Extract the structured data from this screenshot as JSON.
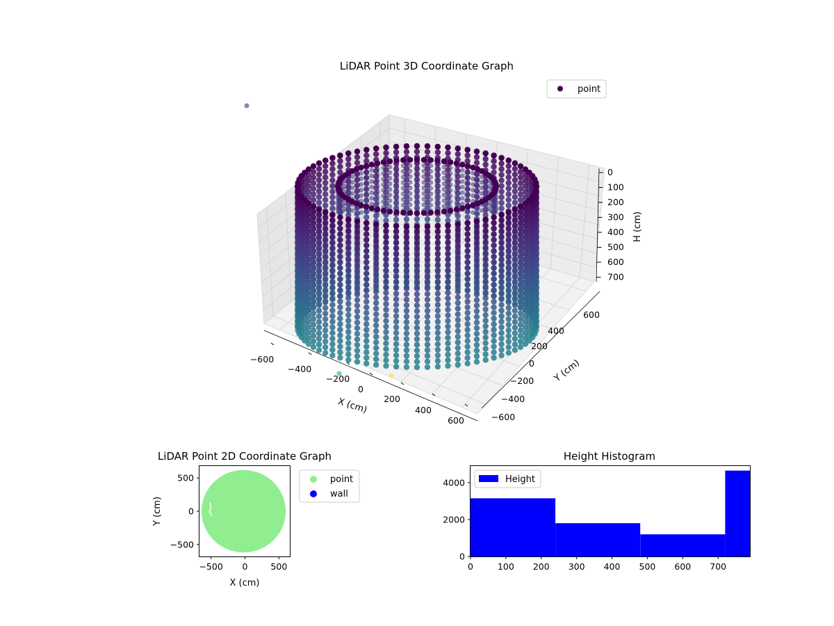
{
  "chart_data": [
    {
      "type": "scatter",
      "projection": "3d",
      "title": "LiDAR Point 3D Coordinate Graph",
      "xlabel": "X (cm)",
      "ylabel": "Y (cm)",
      "zlabel": "H (cm)",
      "xticks": [
        "−600",
        "−400",
        "−200",
        "0",
        "200",
        "400",
        "600"
      ],
      "yticks": [
        "−600",
        "−400",
        "−200",
        "0",
        "200",
        "400",
        "600"
      ],
      "zticks": [
        "0",
        "100",
        "200",
        "300",
        "400",
        "500",
        "600",
        "700"
      ],
      "xlim": [
        -650,
        650
      ],
      "ylim": [
        -650,
        650
      ],
      "zlim": [
        0,
        800
      ],
      "zaxis_inverted": true,
      "colormap": "viridis",
      "legend": {
        "position": "top-right",
        "entries": [
          {
            "label": "point",
            "color": "#440154"
          }
        ]
      },
      "series": [
        {
          "name": "point",
          "shape": "cylindrical shell of points",
          "outer_radius": 650,
          "inner_radius": 430,
          "height_range": [
            0,
            750
          ]
        }
      ],
      "outliers": [
        {
          "x": -350,
          "y": -650,
          "h": 0,
          "color": "#8a6aa0"
        },
        {
          "x": -150,
          "y": -600,
          "h": 800,
          "color": "#5ec98a"
        },
        {
          "x": 150,
          "y": -600,
          "h": 800,
          "color": "#f5e27a"
        }
      ],
      "grid": true
    },
    {
      "type": "scatter",
      "title": "LiDAR Point 2D Coordinate Graph",
      "xlabel": "X (cm)",
      "ylabel": "Y (cm)",
      "xticks": [
        "−500",
        "0",
        "500"
      ],
      "yticks": [
        "500",
        "0",
        "−500"
      ],
      "xlim": [
        -670,
        660
      ],
      "ylim": [
        -680,
        680
      ],
      "legend": {
        "position": "outside-right",
        "entries": [
          {
            "label": "point",
            "color": "#90ee90"
          },
          {
            "label": "wall",
            "color": "#0000ff"
          }
        ]
      },
      "series": [
        {
          "name": "point",
          "color": "#90ee90",
          "shape": "filled disk",
          "center": [
            -20,
            0
          ],
          "radius": 620
        },
        {
          "name": "wall",
          "color": "#0000ff",
          "points": []
        }
      ]
    },
    {
      "type": "bar",
      "subtype": "histogram",
      "title": "Height Histogram",
      "xlabel": "",
      "ylabel": "",
      "xticks": [
        "0",
        "100",
        "200",
        "300",
        "400",
        "500",
        "600",
        "700"
      ],
      "yticks": [
        "0",
        "2000",
        "4000"
      ],
      "xlim": [
        0,
        790
      ],
      "ylim": [
        0,
        4900
      ],
      "legend": {
        "position": "top-left",
        "entries": [
          {
            "label": "Height",
            "color": "#0000ff"
          }
        ]
      },
      "bins": [
        [
          0,
          240
        ],
        [
          240,
          480
        ],
        [
          480,
          720
        ],
        [
          720,
          790
        ]
      ],
      "values": [
        3150,
        1800,
        1200,
        4650
      ],
      "color": "#0000ff"
    }
  ]
}
